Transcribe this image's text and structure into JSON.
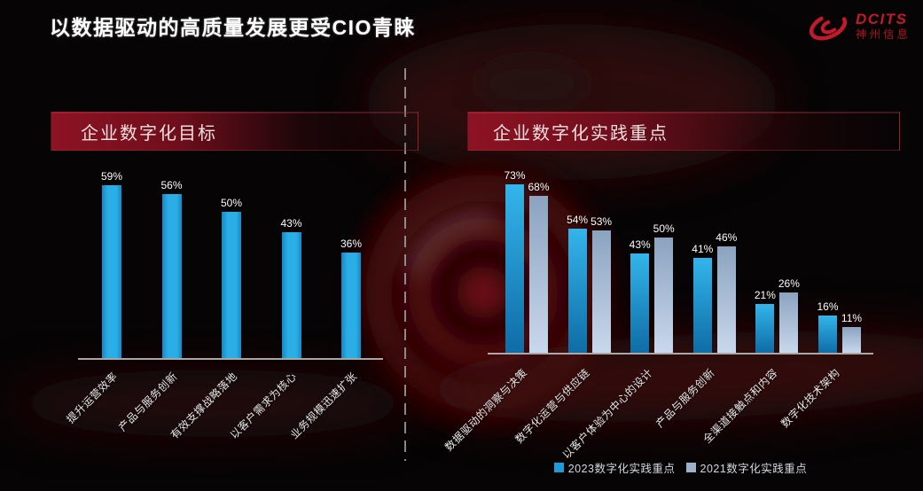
{
  "slide": {
    "title": "以数据驱动的高质量发展更受CIO青睐"
  },
  "logo": {
    "brand": "DCITS",
    "company": "神州信息",
    "icon": "swirl-icon",
    "color": "#c21a2c"
  },
  "panels": {
    "left": {
      "header": "企业数字化目标"
    },
    "right": {
      "header": "企业数字化实践重点"
    }
  },
  "legend": [
    {
      "label": "2023数字化实践重点",
      "color": "#1f9ad8"
    },
    {
      "label": "2021数字化实践重点",
      "color": "#9db2c8"
    }
  ],
  "chart_data": [
    {
      "type": "bar",
      "title": "企业数字化目标",
      "categories": [
        "提升运营效率",
        "产品与服务创新",
        "有效支撑战略落地",
        "以客户需求为核心",
        "业务规模迅速扩张"
      ],
      "values": [
        59,
        56,
        50,
        43,
        36
      ],
      "unit": "%",
      "data_labels": [
        "59%",
        "56%",
        "50%",
        "43%",
        "36%"
      ],
      "ylim": [
        0,
        100
      ],
      "grid": false,
      "bar_color": "#1d9fdc",
      "bar_gradient": [
        "#1488c8",
        "#2bade5"
      ],
      "legend_position": "none"
    },
    {
      "type": "bar",
      "title": "企业数字化实践重点",
      "categories": [
        "数据驱动的洞察与决策",
        "数字化运营与供应链",
        "以客户体验为中心的设计",
        "产品与服务创新",
        "全渠道接触点和内容",
        "数字化技术架构"
      ],
      "series": [
        {
          "name": "2023数字化实践重点",
          "values": [
            73,
            54,
            43,
            41,
            21,
            16
          ],
          "color_top": "#33b5eb",
          "color_bottom": "#0f6ca6"
        },
        {
          "name": "2021数字化实践重点",
          "values": [
            68,
            53,
            50,
            46,
            26,
            11
          ],
          "color_top": "#8ba3c0",
          "color_bottom": "#c9d8ec"
        }
      ],
      "unit": "%",
      "data_labels": [
        [
          "73%",
          "54%",
          "43%",
          "41%",
          "21%",
          "16%"
        ],
        [
          "68%",
          "53%",
          "50%",
          "46%",
          "26%",
          "11%"
        ]
      ],
      "ylim": [
        0,
        100
      ],
      "grid": false,
      "legend_position": "bottom"
    }
  ]
}
